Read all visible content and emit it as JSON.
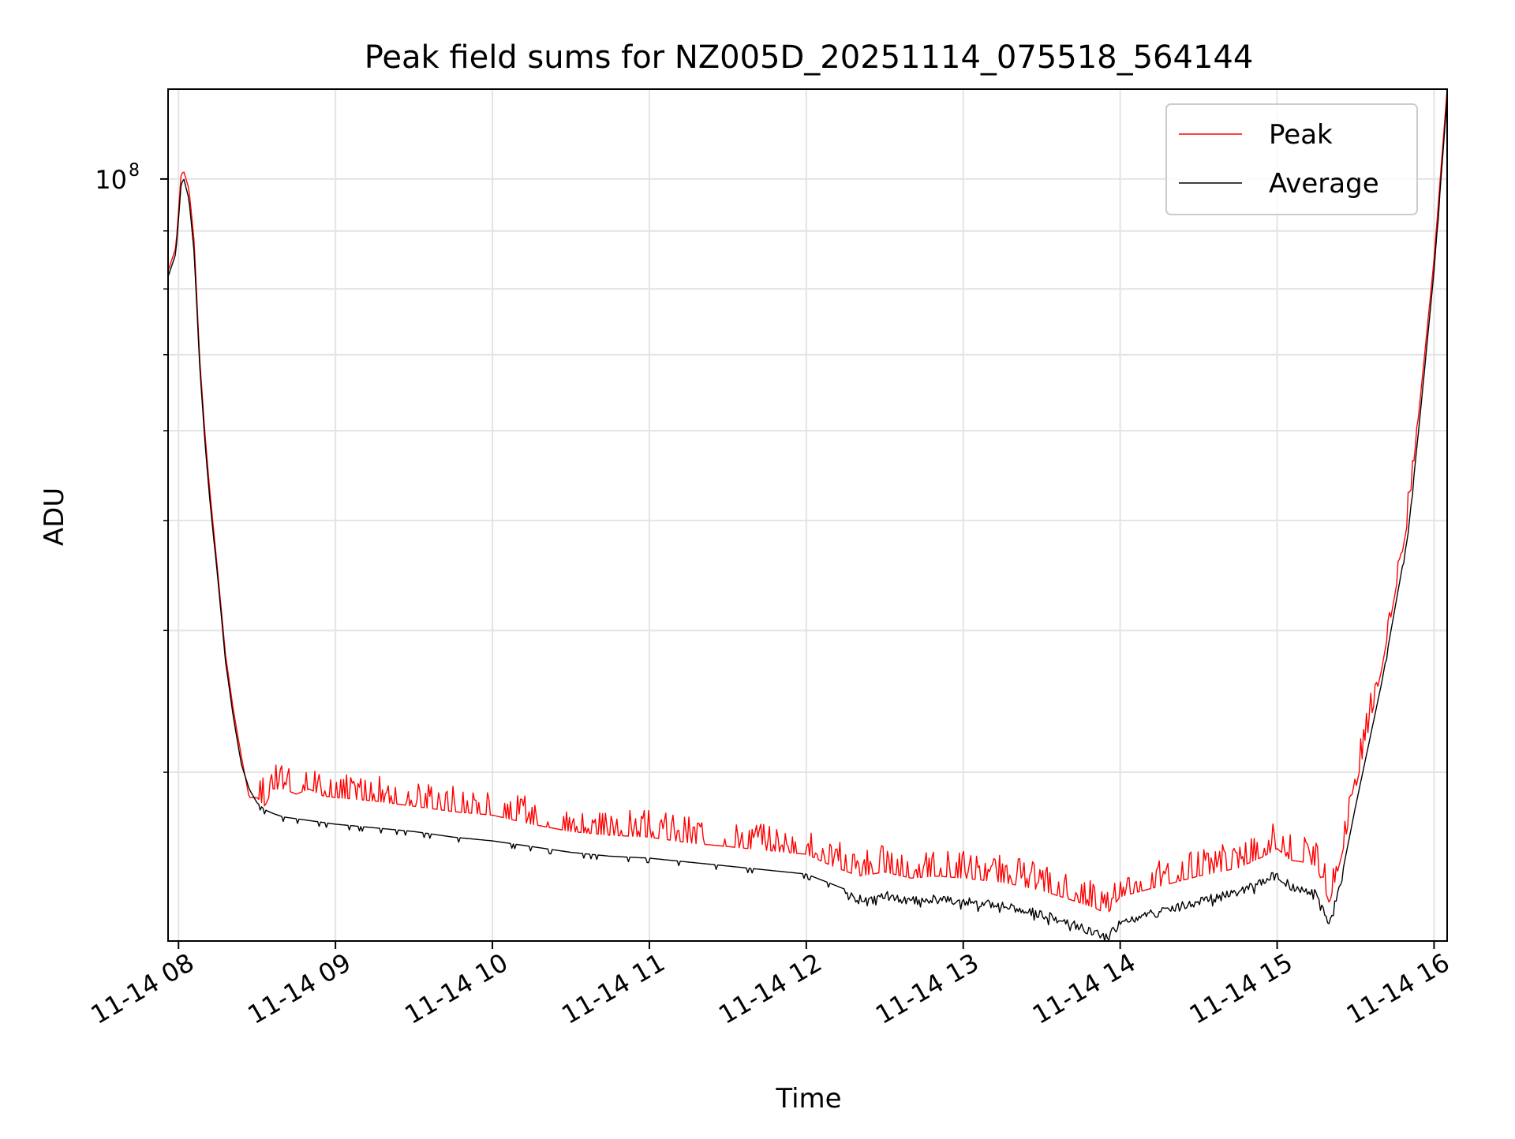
{
  "chart_data": {
    "type": "line",
    "title": "Peak field sums for NZ005D_20251114_075518_564144",
    "xlabel": "Time",
    "ylabel": "ADU",
    "y_scale": "log",
    "y_tick_labels": [
      {
        "base": "10",
        "exp": "8",
        "value": 100000000
      }
    ],
    "x_tick_labels": [
      "11-14 08",
      "11-14 09",
      "11-14 10",
      "11-14 11",
      "11-14 12",
      "11-14 13",
      "11-14 14",
      "11-14 15",
      "11-14 16"
    ],
    "x_tick_times": [
      "08:00",
      "09:00",
      "10:00",
      "11:00",
      "12:00",
      "13:00",
      "14:00",
      "15:00",
      "16:00"
    ],
    "xlim": [
      "07:56",
      "16:05"
    ],
    "ylim": [
      21300000,
      120000000
    ],
    "grid": true,
    "legend_position": "top-right",
    "series": [
      {
        "name": "Peak",
        "color": "#ff0000",
        "x": [
          "07:56",
          "07:59",
          "08:01",
          "08:02",
          "08:04",
          "08:06",
          "08:08",
          "08:10",
          "08:12",
          "08:15",
          "08:18",
          "08:21",
          "08:24",
          "08:27",
          "08:30",
          "08:33",
          "08:36",
          "08:40",
          "08:45",
          "08:50",
          "08:55",
          "09:00",
          "09:15",
          "09:30",
          "09:45",
          "10:00",
          "10:15",
          "10:30",
          "10:45",
          "11:00",
          "11:15",
          "11:30",
          "11:45",
          "12:00",
          "12:10",
          "12:20",
          "12:30",
          "12:40",
          "12:50",
          "13:00",
          "13:15",
          "13:30",
          "13:40",
          "13:50",
          "13:55",
          "14:00",
          "14:15",
          "14:30",
          "14:45",
          "14:55",
          "15:00",
          "15:05",
          "15:10",
          "15:15",
          "15:20",
          "15:25",
          "15:30",
          "15:40",
          "15:50",
          "15:55",
          "16:00",
          "16:05"
        ],
        "y": [
          83000000,
          87000000,
          101000000,
          101500000,
          98000000,
          88000000,
          70000000,
          60000000,
          53000000,
          45000000,
          38000000,
          34000000,
          31000000,
          28500000,
          28500000,
          28000000,
          29000000,
          29000000,
          28700000,
          29000000,
          28600000,
          28500000,
          28300000,
          28000000,
          27700000,
          27500000,
          27000000,
          26600000,
          26400000,
          26300000,
          26000000,
          25800000,
          25600000,
          25400000,
          24800000,
          24300000,
          24500000,
          24200000,
          24300000,
          24200000,
          24000000,
          23600000,
          23200000,
          22800000,
          22500000,
          23300000,
          23800000,
          24300000,
          24700000,
          25300000,
          25700000,
          25100000,
          25000000,
          24800000,
          23000000,
          25500000,
          29000000,
          37000000,
          50000000,
          65000000,
          85000000,
          120000000
        ]
      },
      {
        "name": "Average",
        "color": "#000000",
        "x": [
          "07:56",
          "07:59",
          "08:01",
          "08:02",
          "08:04",
          "08:06",
          "08:08",
          "08:10",
          "08:12",
          "08:15",
          "08:18",
          "08:21",
          "08:24",
          "08:27",
          "08:30",
          "08:33",
          "08:36",
          "08:40",
          "08:45",
          "08:50",
          "08:55",
          "09:00",
          "09:15",
          "09:30",
          "09:45",
          "10:00",
          "10:15",
          "10:30",
          "10:45",
          "11:00",
          "11:15",
          "11:30",
          "11:45",
          "12:00",
          "12:10",
          "12:20",
          "12:30",
          "12:40",
          "12:50",
          "13:00",
          "13:15",
          "13:30",
          "13:40",
          "13:50",
          "13:55",
          "14:00",
          "14:15",
          "14:30",
          "14:45",
          "14:55",
          "15:00",
          "15:05",
          "15:10",
          "15:15",
          "15:20",
          "15:25",
          "15:30",
          "15:40",
          "15:50",
          "15:55",
          "16:00",
          "16:05"
        ],
        "y": [
          82000000,
          86000000,
          99000000,
          100000000,
          96000000,
          86000000,
          69000000,
          59000000,
          52000000,
          44500000,
          37500000,
          33500000,
          30500000,
          29000000,
          28200000,
          27800000,
          27600000,
          27400000,
          27300000,
          27200000,
          27100000,
          27000000,
          26800000,
          26600000,
          26300000,
          26100000,
          25800000,
          25500000,
          25300000,
          25200000,
          25000000,
          24800000,
          24600000,
          24400000,
          23900000,
          23400000,
          23600000,
          23300000,
          23400000,
          23300000,
          23100000,
          22700000,
          22300000,
          21900000,
          21600000,
          22300000,
          22800000,
          23300000,
          23700000,
          24300000,
          24600000,
          24000000,
          23900000,
          23700000,
          22300000,
          24500000,
          28000000,
          36000000,
          48500000,
          63000000,
          83000000,
          118000000
        ]
      }
    ]
  }
}
